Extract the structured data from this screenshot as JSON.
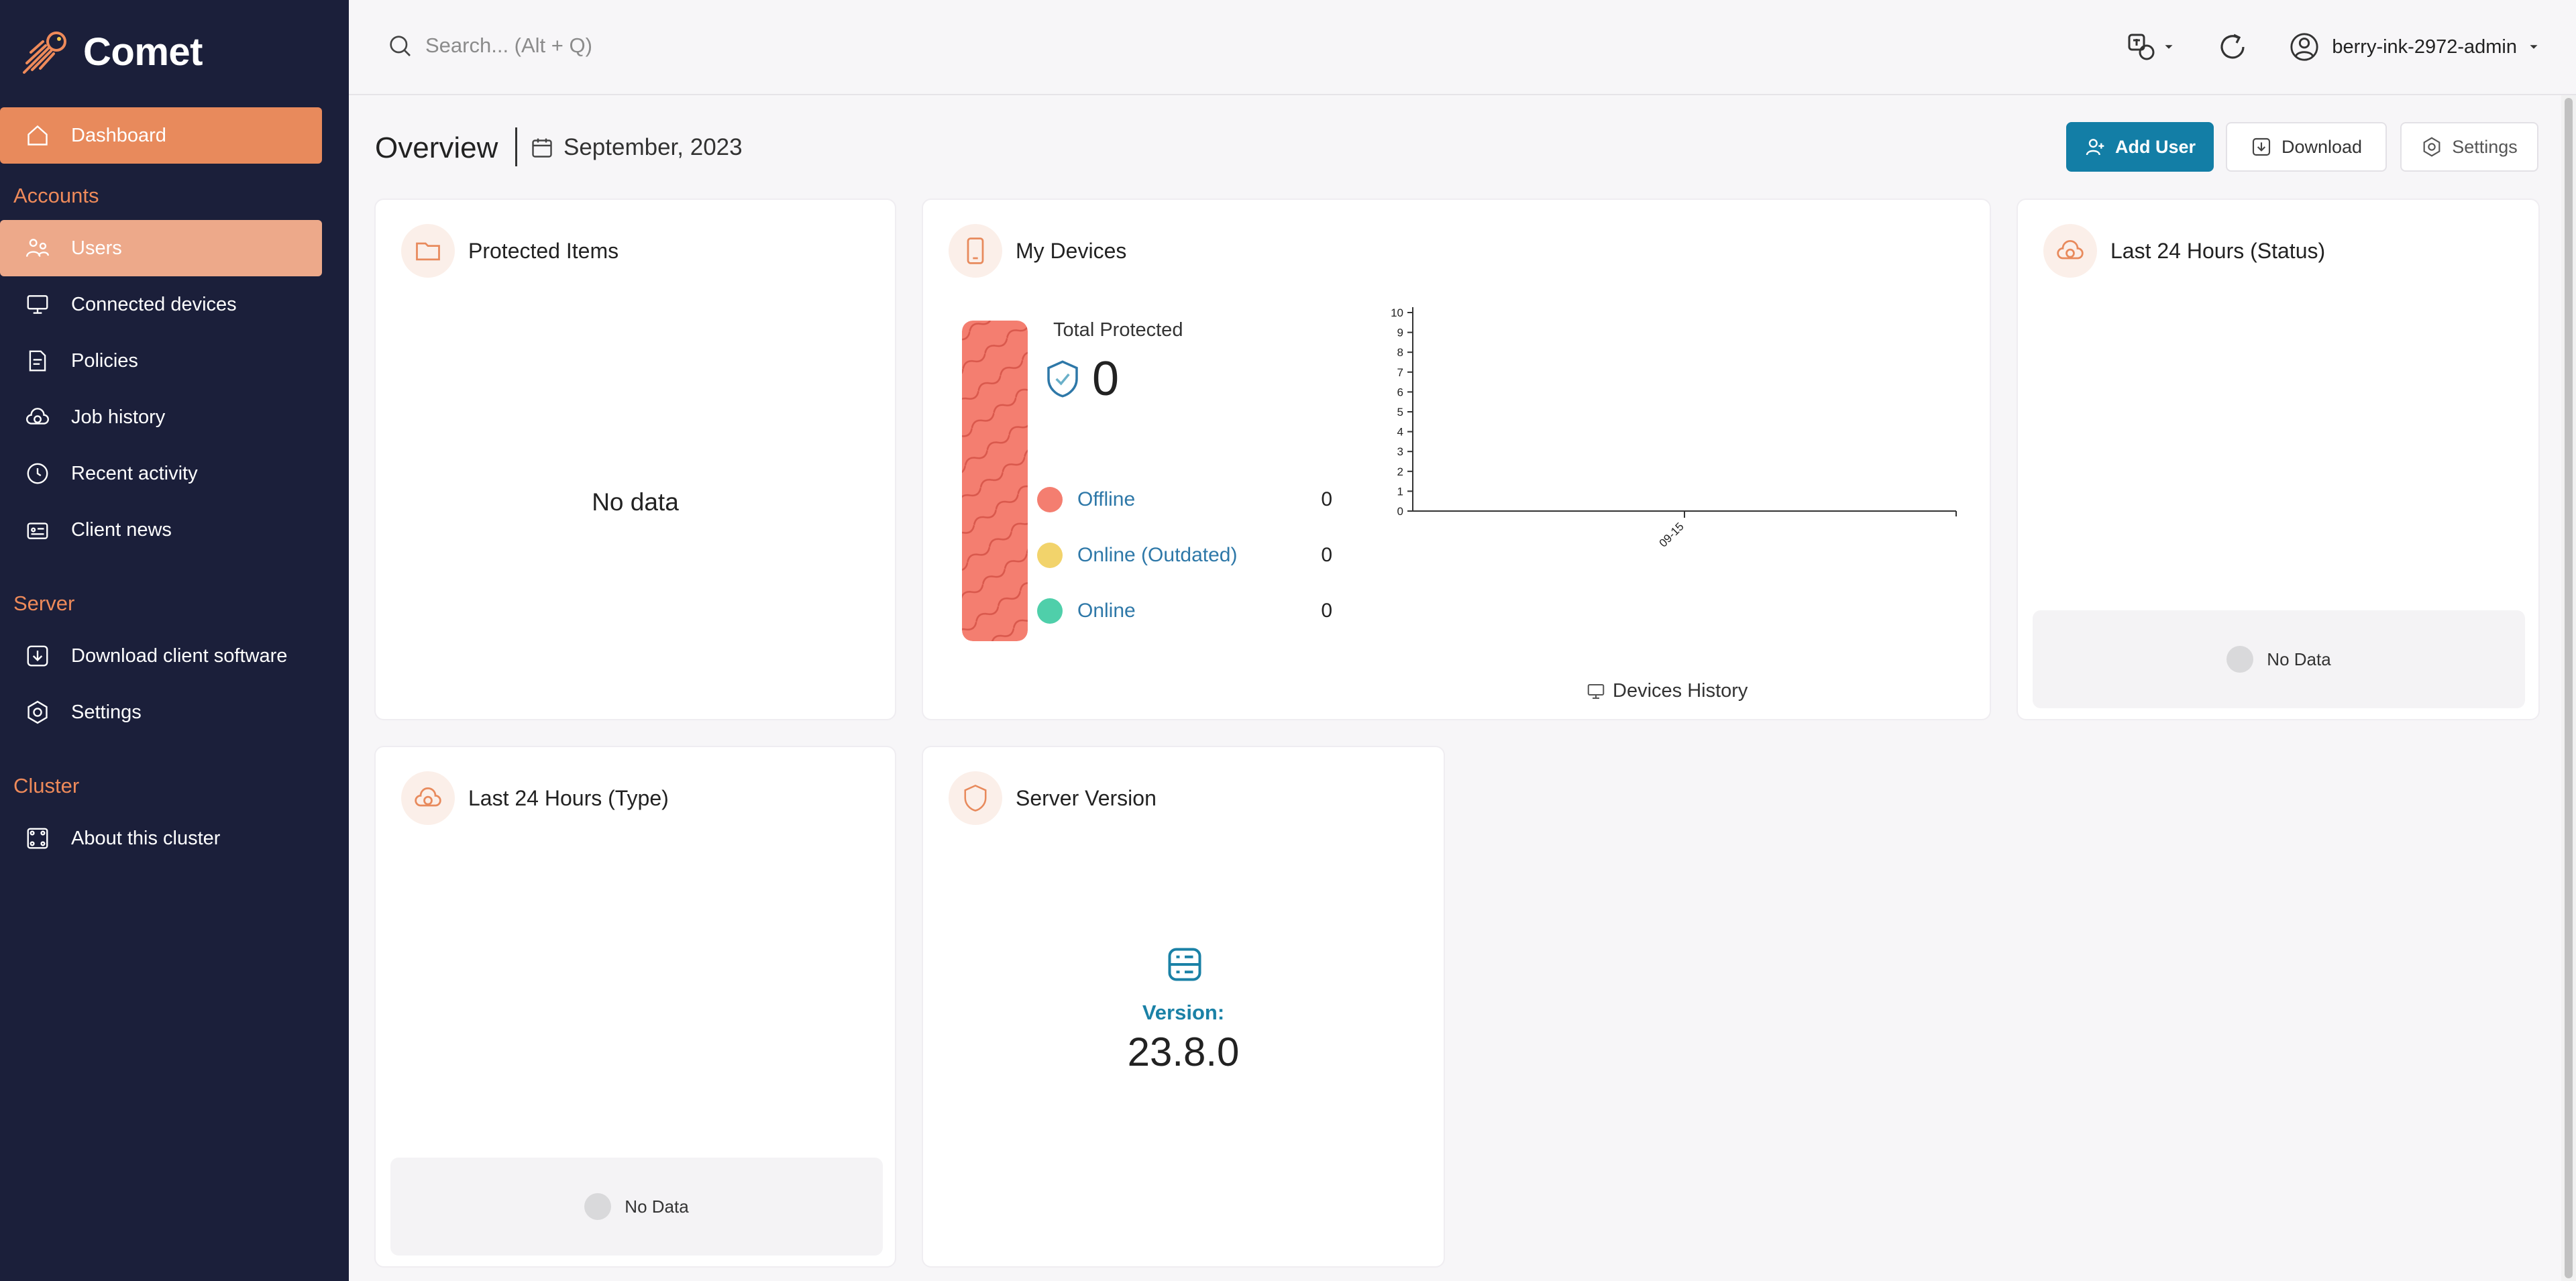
{
  "brand": {
    "name": "Comet",
    "accent": "#e88a5c",
    "primary": "#137ea6"
  },
  "sidebar": {
    "dashboard": "Dashboard",
    "sections": {
      "accounts": "Accounts",
      "server": "Server",
      "cluster": "Cluster"
    },
    "accounts_items": [
      {
        "label": "Users",
        "icon": "users-icon"
      },
      {
        "label": "Connected devices",
        "icon": "monitor-icon"
      },
      {
        "label": "Policies",
        "icon": "policy-icon"
      },
      {
        "label": "Job history",
        "icon": "cloud-history-icon"
      },
      {
        "label": "Recent activity",
        "icon": "clock-icon"
      },
      {
        "label": "Client news",
        "icon": "news-icon"
      }
    ],
    "server_items": [
      {
        "label": "Download client software",
        "icon": "download-icon"
      },
      {
        "label": "Settings",
        "icon": "settings-icon"
      }
    ],
    "cluster_items": [
      {
        "label": "About this cluster",
        "icon": "cluster-icon"
      }
    ]
  },
  "topbar": {
    "search_placeholder": "Search... (Alt + Q)",
    "username": "berry-ink-2972-admin"
  },
  "header": {
    "title": "Overview",
    "date": "September, 2023",
    "buttons": {
      "add_user": "Add User",
      "download": "Download",
      "settings": "Settings"
    }
  },
  "cards": {
    "protected_items": {
      "title": "Protected Items",
      "empty": "No data"
    },
    "my_devices": {
      "title": "My Devices",
      "total_label": "Total Protected",
      "total_value": "0",
      "legend": [
        {
          "label": "Offline",
          "value": "0",
          "color": "#f47e70"
        },
        {
          "label": "Online (Outdated)",
          "value": "0",
          "color": "#f2d36b"
        },
        {
          "label": "Online",
          "value": "0",
          "color": "#4fcfaa"
        }
      ],
      "history_label": "Devices History"
    },
    "status_24h": {
      "title": "Last 24 Hours (Status)",
      "empty": "No Data"
    },
    "type_24h": {
      "title": "Last 24 Hours (Type)",
      "empty": "No Data"
    },
    "server_version": {
      "title": "Server Version",
      "version_label": "Version:",
      "version_value": "23.8.0"
    }
  },
  "chart_data": {
    "type": "bar",
    "title": "Devices History",
    "categories": [
      "09-15"
    ],
    "values": [
      0
    ],
    "ylim": [
      0,
      10
    ],
    "yticks": [
      "0",
      "1",
      "2",
      "3",
      "4",
      "5",
      "6",
      "7",
      "8",
      "9",
      "10"
    ],
    "xlabel": "",
    "ylabel": ""
  }
}
